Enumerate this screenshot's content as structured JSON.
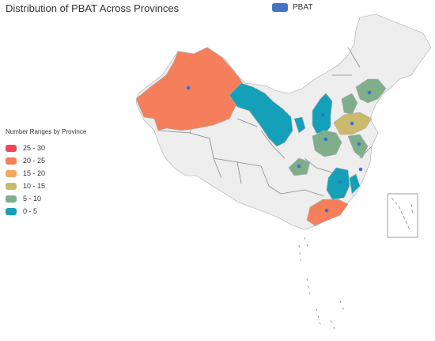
{
  "title": "Distribution of PBAT Across Provinces",
  "series_legend": {
    "label": "PBAT",
    "color": "#4472c4"
  },
  "range_legend": {
    "title": "Number Ranges by Province",
    "items": [
      {
        "label": "25 - 30",
        "color": "#f0455a"
      },
      {
        "label": "20 - 25",
        "color": "#f57f5b"
      },
      {
        "label": "15 - 20",
        "color": "#f5a85a"
      },
      {
        "label": "10 - 15",
        "color": "#c9bb6b"
      },
      {
        "label": "5 - 10",
        "color": "#7fae8a"
      },
      {
        "label": "0 - 5",
        "color": "#13a0b8"
      }
    ]
  },
  "colors": {
    "no_data": "#eeeeee",
    "range_20_25": "#f57f5b",
    "range_10_15": "#c9bb6b",
    "range_5_10": "#7fae8a",
    "range_0_5": "#13a0b8",
    "marker": "#3b6fd4"
  },
  "chart_data": {
    "type": "choropleth-map",
    "series": [
      {
        "name": "PBAT"
      }
    ],
    "regions_colored_by_range": {
      "20 - 25": [
        "Xinjiang",
        "Guangdong"
      ],
      "10 - 15": [
        "Shandong"
      ],
      "5 - 10": [
        "Liaoning",
        "Hebei",
        "Henan",
        "Jiangsu",
        "Guizhou"
      ],
      "0 - 5": [
        "Qinghai",
        "Gansu",
        "Ningxia",
        "Shaanxi",
        "Shanxi",
        "Jiangxi",
        "Fujian"
      ]
    }
  }
}
